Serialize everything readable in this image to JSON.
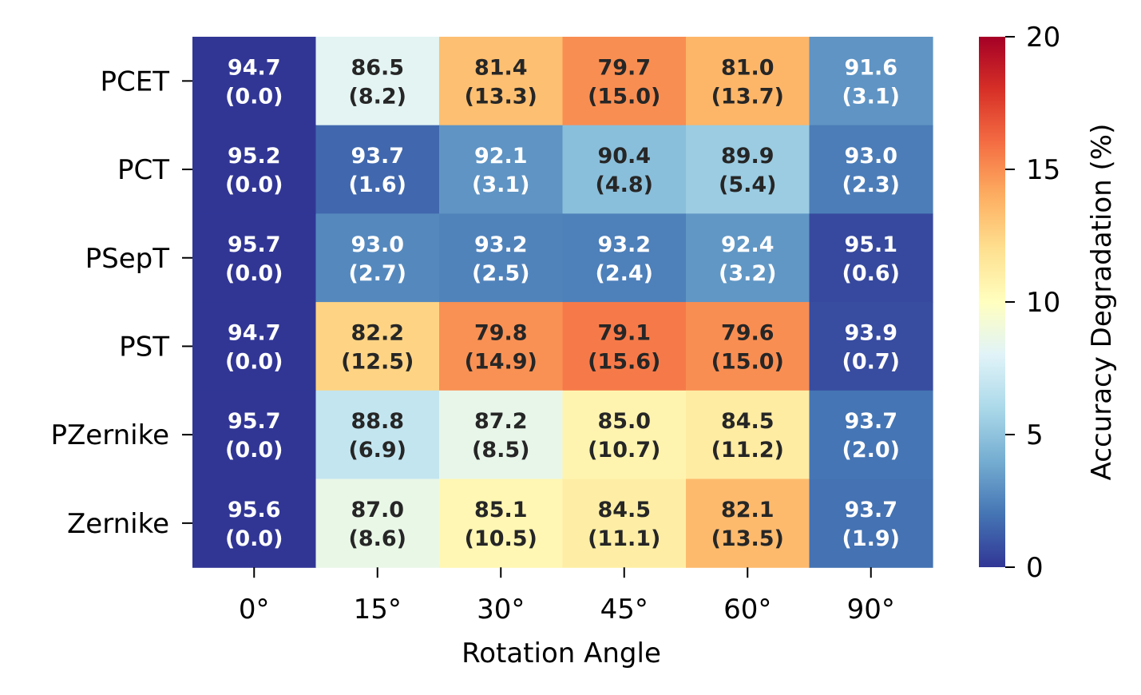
{
  "chart_data": {
    "type": "heatmap",
    "title": "",
    "xlabel": "Rotation Angle",
    "ylabel": "",
    "x_categories": [
      "0°",
      "15°",
      "30°",
      "45°",
      "60°",
      "90°"
    ],
    "y_categories": [
      "PCET",
      "PCT",
      "PSepT",
      "PST",
      "PZernike",
      "Zernike"
    ],
    "accuracy": [
      [
        "94.7",
        "86.5",
        "81.4",
        "79.7",
        "81.0",
        "91.6"
      ],
      [
        "95.2",
        "93.7",
        "92.1",
        "90.4",
        "89.9",
        "93.0"
      ],
      [
        "95.7",
        "93.0",
        "93.2",
        "93.2",
        "92.4",
        "95.1"
      ],
      [
        "94.7",
        "82.2",
        "79.8",
        "79.1",
        "79.6",
        "93.9"
      ],
      [
        "95.7",
        "88.8",
        "87.2",
        "85.0",
        "84.5",
        "93.7"
      ],
      [
        "95.6",
        "87.0",
        "85.1",
        "84.5",
        "82.1",
        "93.7"
      ]
    ],
    "degradation": [
      [
        "0.0",
        "8.2",
        "13.3",
        "15.0",
        "13.7",
        "3.1"
      ],
      [
        "0.0",
        "1.6",
        "3.1",
        "4.8",
        "5.4",
        "2.3"
      ],
      [
        "0.0",
        "2.7",
        "2.5",
        "2.4",
        "3.2",
        "0.6"
      ],
      [
        "0.0",
        "12.5",
        "14.9",
        "15.6",
        "15.0",
        "0.7"
      ],
      [
        "0.0",
        "6.9",
        "8.5",
        "10.7",
        "11.2",
        "2.0"
      ],
      [
        "0.0",
        "8.6",
        "10.5",
        "11.1",
        "13.5",
        "1.9"
      ]
    ],
    "colorbar": {
      "label": "Accuracy Degradation (%)",
      "range": [
        0,
        20
      ],
      "ticks": [
        "0",
        "5",
        "10",
        "15",
        "20"
      ],
      "colormap": "RdYlBu_r"
    }
  }
}
